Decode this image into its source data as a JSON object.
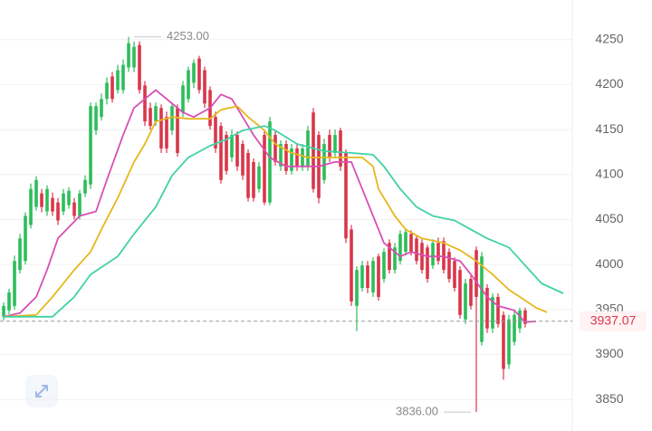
{
  "chart_data": {
    "type": "candlestick",
    "up_color": "#2dbd5a",
    "down_color": "#d9364a",
    "grid": true,
    "ylim": [
      3815,
      4294
    ],
    "yticks": [
      3850,
      3900,
      3950,
      4000,
      4050,
      4100,
      4150,
      4200,
      4250
    ],
    "xlim": [
      -0.67,
      104.67
    ],
    "open": [
      3942,
      3949,
      3954,
      3994,
      4004,
      4044,
      4064,
      4079,
      4059,
      4074,
      4069,
      4059,
      4066,
      4069,
      4054,
      4079,
      4089,
      4149,
      4164,
      4184,
      4209,
      4194,
      4194,
      4219,
      4219,
      4244,
      4199,
      4174,
      4159,
      4174,
      4164,
      4149,
      4174,
      4169,
      4184,
      4202,
      4229,
      4216,
      4194,
      4164,
      4154,
      4144,
      4119,
      4144,
      4134,
      4124,
      4114,
      4084,
      4144,
      4069,
      4144,
      4109,
      4134,
      4104,
      4129,
      4109,
      4109,
      4169,
      4144,
      4094,
      4144,
      4124,
      4149,
      4124,
      4039,
      3954,
      3974,
      3999,
      3969,
      4009,
      3984,
      4024,
      3994,
      4004,
      4014,
      4034,
      4029,
      4024,
      4019,
      3999,
      4024,
      4026,
      4014,
      4004,
      3994,
      3939,
      3984,
      4016,
      3914,
      3974,
      3929,
      3964,
      3944,
      3889,
      3914,
      3929,
      3949
    ],
    "high": [
      3958,
      3973,
      4010,
      4034,
      4058,
      4090,
      4098,
      4084,
      4088,
      4080,
      4074,
      4084,
      4086,
      4074,
      4083,
      4099,
      4180,
      4180,
      4190,
      4208,
      4214,
      4222,
      4228,
      4253,
      4248,
      4248,
      4204,
      4180,
      4180,
      4178,
      4170,
      4180,
      4178,
      4204,
      4220,
      4228,
      4232,
      4220,
      4198,
      4170,
      4158,
      4148,
      4150,
      4148,
      4138,
      4128,
      4118,
      4114,
      4148,
      4164,
      4148,
      4138,
      4138,
      4134,
      4134,
      4134,
      4154,
      4174,
      4148,
      4140,
      4150,
      4150,
      4152,
      4128,
      4044,
      3998,
      4004,
      4004,
      4008,
      4012,
      4018,
      4028,
      4024,
      4038,
      4040,
      4038,
      4032,
      4028,
      4022,
      4028,
      4030,
      4030,
      4018,
      4008,
      3998,
      3984,
      3988,
      4020,
      4014,
      3978,
      3968,
      3968,
      3948,
      3944,
      3948,
      3952,
      3952
    ],
    "low": [
      3938,
      3945,
      3950,
      3990,
      4000,
      4040,
      4060,
      4058,
      4054,
      4054,
      4044,
      4055,
      4062,
      4050,
      4050,
      4075,
      4084,
      4144,
      4160,
      4178,
      4180,
      4190,
      4190,
      4214,
      4214,
      4190,
      4154,
      4150,
      4154,
      4124,
      4124,
      4144,
      4120,
      4164,
      4180,
      4196,
      4190,
      4174,
      4150,
      4124,
      4090,
      4100,
      4114,
      4104,
      4094,
      4070,
      4070,
      4080,
      4066,
      4066,
      4110,
      4104,
      4100,
      4100,
      4104,
      4104,
      4104,
      4080,
      4068,
      4090,
      4114,
      4118,
      4104,
      4024,
      3954,
      3926,
      3970,
      3968,
      3964,
      3960,
      3980,
      3990,
      3990,
      4000,
      4010,
      4010,
      4000,
      3990,
      3980,
      3995,
      4000,
      3990,
      3980,
      3970,
      3940,
      3934,
      3950,
      3836,
      3910,
      3924,
      3924,
      3930,
      3872,
      3884,
      3910,
      3924,
      3930
    ],
    "close": [
      3954,
      3969,
      4004,
      4029,
      4054,
      4084,
      4094,
      4064,
      4084,
      4059,
      4049,
      4079,
      4082,
      4054,
      4079,
      4094,
      4176,
      4176,
      4184,
      4202,
      4184,
      4216,
      4222,
      4246,
      4242,
      4194,
      4159,
      4154,
      4176,
      4129,
      4129,
      4176,
      4124,
      4199,
      4216,
      4224,
      4194,
      4179,
      4154,
      4129,
      4094,
      4104,
      4144,
      4109,
      4099,
      4074,
      4074,
      4109,
      4069,
      4159,
      4114,
      4134,
      4104,
      4129,
      4109,
      4129,
      4149,
      4084,
      4074,
      4134,
      4119,
      4144,
      4109,
      4029,
      3959,
      3994,
      3999,
      3974,
      4004,
      3964,
      4014,
      3994,
      4019,
      4034,
      4036,
      4014,
      4004,
      3994,
      3984,
      4024,
      4004,
      3994,
      3984,
      3974,
      3944,
      3979,
      3954,
      3964,
      4009,
      3929,
      3964,
      3934,
      3884,
      3939,
      3944,
      3949,
      3934
    ],
    "lines": [
      {
        "color": "#d84fb4",
        "x": [
          0,
          3,
          6,
          8,
          10,
          14,
          17,
          19,
          22,
          24,
          28,
          30,
          33,
          35,
          38,
          40,
          42,
          44,
          46,
          49,
          52,
          54,
          58,
          61,
          64,
          65,
          68,
          70,
          73,
          75,
          78,
          81,
          84,
          86,
          89,
          91,
          94,
          96,
          98
        ],
        "values": [
          3942,
          3946,
          3964,
          3994,
          4029,
          4054,
          4059,
          4094,
          4144,
          4174,
          4194,
          4184,
          4169,
          4164,
          4174,
          4189,
          4184,
          4164,
          4144,
          4119,
          4109,
          4109,
          4109,
          4114,
          4114,
          4099,
          4054,
          4024,
          4009,
          4014,
          4009,
          4009,
          4004,
          3989,
          3964,
          3954,
          3949,
          3936,
          3937
        ]
      },
      {
        "color": "#e6b71e",
        "x": [
          0,
          6,
          9,
          13,
          16,
          18,
          21,
          24,
          26,
          28,
          31,
          34,
          38,
          40,
          43,
          45,
          48,
          50,
          53,
          56,
          59,
          64,
          66,
          68,
          69,
          72,
          74,
          77,
          81,
          84,
          87,
          90,
          93,
          95,
          98,
          100
        ],
        "values": [
          3942,
          3944,
          3964,
          3994,
          4014,
          4039,
          4074,
          4114,
          4134,
          4159,
          4164,
          4162,
          4162,
          4172,
          4176,
          4164,
          4149,
          4134,
          4124,
          4119,
          4119,
          4119,
          4119,
          4109,
          4084,
          4054,
          4039,
          4029,
          4024,
          4016,
          4004,
          3989,
          3972,
          3964,
          3952,
          3947
        ]
      },
      {
        "color": "#41d1a8",
        "x": [
          0,
          9,
          13,
          16,
          21,
          24,
          28,
          31,
          34,
          38,
          41,
          44,
          48,
          50,
          54,
          59,
          64,
          68,
          70,
          73,
          76,
          79,
          83,
          86,
          89,
          93,
          96,
          99,
          103
        ],
        "values": [
          3942,
          3942,
          3964,
          3989,
          4009,
          4034,
          4064,
          4099,
          4119,
          4132,
          4139,
          4149,
          4154,
          4149,
          4134,
          4126,
          4124,
          4122,
          4109,
          4084,
          4064,
          4054,
          4049,
          4039,
          4029,
          4019,
          3999,
          3979,
          3968
        ]
      }
    ],
    "max_label": {
      "value": 4253,
      "label": "4253.00"
    },
    "min_label": {
      "value": 3836,
      "label": "3836.00"
    },
    "last_price": 3937.07,
    "last_price_color": "#d9364a"
  }
}
